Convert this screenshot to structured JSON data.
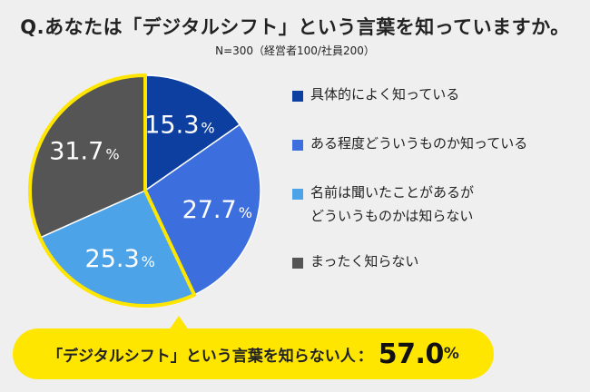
{
  "header": {
    "title": "Q.あなたは「デジタルシフト」という言葉を知っていますか。",
    "subtitle": "N=300（経営者100/社員200）"
  },
  "chart_data": {
    "type": "pie",
    "title": "Q.あなたは「デジタルシフト」という言葉を知っていますか。",
    "subtitle": "N=300（経営者100/社員200）",
    "unit": "%",
    "slices": [
      {
        "label": "具体的によく知っている",
        "value": 15.3,
        "color": "#0d3fa0"
      },
      {
        "label": "ある程度どういうものか知っている",
        "value": 27.7,
        "color": "#3c6fdd"
      },
      {
        "label": "名前は聞いたことがあるが\nどういうものかは知らない",
        "value": 25.3,
        "color": "#4da3e8"
      },
      {
        "label": "まったく知らない",
        "value": 31.7,
        "color": "#555555"
      }
    ],
    "highlight_outline_color": "#ffe600",
    "legend_position": "right"
  },
  "callout": {
    "text": "「デジタルシフト」という言葉を知らない人",
    "colon": "：",
    "value": "57.0",
    "unit": "%"
  }
}
